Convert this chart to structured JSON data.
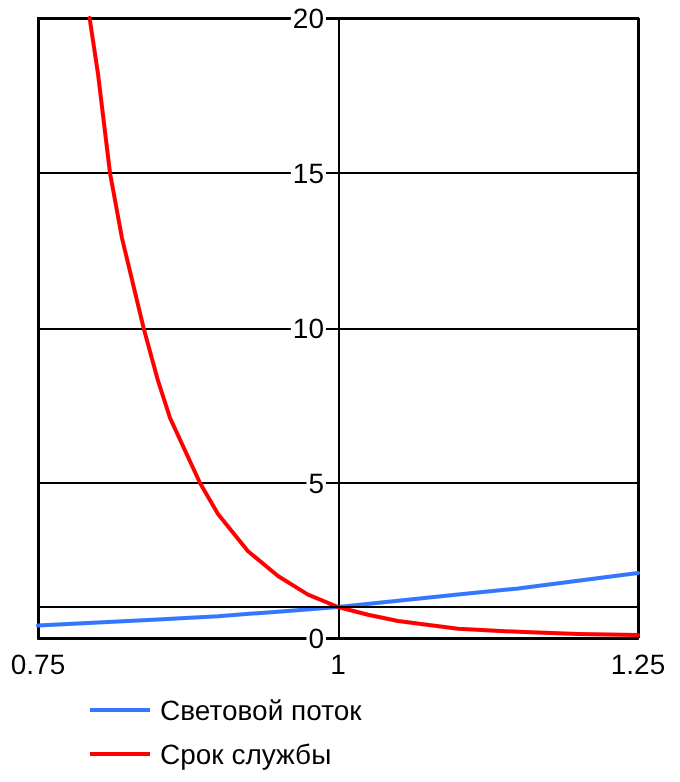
{
  "chart_data": {
    "type": "line",
    "xlim": [
      0.75,
      1.25
    ],
    "xticks": [
      0.75,
      1,
      1.25
    ],
    "ylim": [
      0,
      20
    ],
    "yticks": [
      0,
      5,
      10,
      15,
      20
    ],
    "grid": true,
    "legend": "bottom",
    "marker": "none",
    "line_style": "solid",
    "ref_lines": [
      {
        "axis": "y",
        "value": 1,
        "color": "#000000"
      }
    ],
    "series": [
      {
        "name": "Световой поток",
        "color": "#3377ff",
        "x": [
          0.75,
          0.8,
          0.85,
          0.9,
          0.95,
          1,
          1.05,
          1.1,
          1.15,
          1.2,
          1.25
        ],
        "values": [
          0.4,
          0.5,
          0.6,
          0.7,
          0.85,
          1,
          1.2,
          1.4,
          1.6,
          1.85,
          2.1
        ]
      },
      {
        "name": "Срок службы",
        "color": "#ff0000",
        "x": [
          0.793,
          0.8,
          0.81,
          0.82,
          0.838,
          0.85,
          0.86,
          0.885,
          0.9,
          0.925,
          0.95,
          0.975,
          1,
          1.025,
          1.05,
          1.1,
          1.15,
          1.2,
          1.25
        ],
        "values": [
          20,
          18.2,
          15,
          12.9,
          10,
          8.3,
          7.1,
          5,
          4,
          2.8,
          2,
          1.4,
          1,
          0.75,
          0.55,
          0.3,
          0.2,
          0.13,
          0.1
        ]
      }
    ]
  }
}
